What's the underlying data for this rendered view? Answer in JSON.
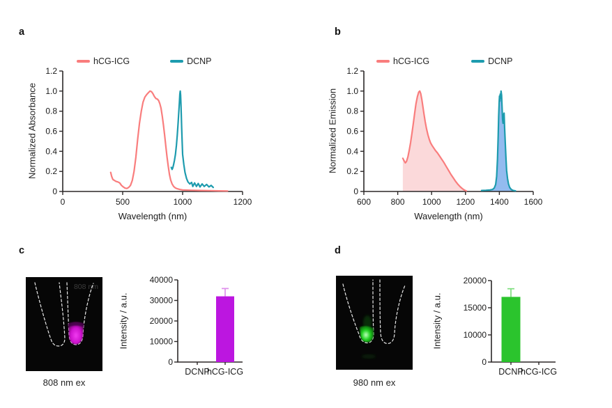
{
  "panels": {
    "a": {
      "label": "a",
      "ylabel": "Normalized Absorbance",
      "xlabel": "Wavelength (nm)",
      "legend": [
        {
          "name": "hCG-ICG",
          "color": "#F97D7D"
        },
        {
          "name": "DCNP",
          "color": "#1D9BAE"
        }
      ]
    },
    "b": {
      "label": "b",
      "ylabel": "Normalized Emission",
      "xlabel": "Wavelength (nm)",
      "legend": [
        {
          "name": "hCG-ICG",
          "color": "#F97D7D"
        },
        {
          "name": "DCNP",
          "color": "#1D9BAE"
        }
      ]
    },
    "c": {
      "label": "c",
      "caption": "808 nm ex",
      "overlay_text": "808 nm",
      "ylabel": "Intensity / a.u.",
      "glow_color": "#CC11CC"
    },
    "d": {
      "label": "d",
      "caption": "980 nm ex",
      "ylabel": "Intensity / a.u.",
      "glow_color": "#22D322"
    }
  },
  "colors": {
    "axis": "#2b2727",
    "pink_line": "#F97D7D",
    "pink_fill": "#FBD9DA",
    "teal_line": "#1D9BAE",
    "blue_fill": "#93BBEF",
    "magenta_bar": "#BC16E0",
    "magenta_error": "#DE8EEC",
    "green_bar": "#2BC42D",
    "green_error": "#7FDE7F"
  },
  "chart_data": [
    {
      "id": "a",
      "type": "line",
      "title": "",
      "xlabel": "Wavelength (nm)",
      "ylabel": "Normalized Absorbance",
      "xticks": [
        0,
        500,
        1000,
        1200
      ],
      "xtick_note": "ticks rendered equally spaced (compressed 1000-1200 segment)",
      "yticks": [
        0,
        0.2,
        0.4,
        0.6,
        0.8,
        1.0,
        1.2
      ],
      "ylim": [
        0,
        1.2
      ],
      "grid": false,
      "legend_position": "top",
      "series": [
        {
          "name": "hCG-ICG",
          "color": "#F97D7D",
          "fill": null,
          "points": [
            [
              400,
              0.19
            ],
            [
              408,
              0.15
            ],
            [
              418,
              0.12
            ],
            [
              430,
              0.11
            ],
            [
              445,
              0.1
            ],
            [
              460,
              0.095
            ],
            [
              475,
              0.085
            ],
            [
              490,
              0.06
            ],
            [
              505,
              0.045
            ],
            [
              520,
              0.033
            ],
            [
              535,
              0.03
            ],
            [
              550,
              0.04
            ],
            [
              565,
              0.06
            ],
            [
              580,
              0.11
            ],
            [
              595,
              0.2
            ],
            [
              610,
              0.34
            ],
            [
              625,
              0.52
            ],
            [
              640,
              0.68
            ],
            [
              655,
              0.8
            ],
            [
              670,
              0.89
            ],
            [
              685,
              0.94
            ],
            [
              700,
              0.965
            ],
            [
              715,
              0.985
            ],
            [
              728,
              1.0
            ],
            [
              740,
              0.995
            ],
            [
              752,
              0.975
            ],
            [
              765,
              0.945
            ],
            [
              778,
              0.925
            ],
            [
              790,
              0.92
            ],
            [
              800,
              0.905
            ],
            [
              810,
              0.875
            ],
            [
              820,
              0.83
            ],
            [
              830,
              0.75
            ],
            [
              840,
              0.66
            ],
            [
              850,
              0.56
            ],
            [
              860,
              0.45
            ],
            [
              870,
              0.345
            ],
            [
              880,
              0.25
            ],
            [
              890,
              0.17
            ],
            [
              900,
              0.115
            ],
            [
              912,
              0.075
            ],
            [
              925,
              0.05
            ],
            [
              940,
              0.035
            ],
            [
              955,
              0.027
            ],
            [
              975,
              0.02
            ],
            [
              1000,
              0.015
            ],
            [
              1030,
              0.012
            ],
            [
              1060,
              0.01
            ],
            [
              1090,
              0.008
            ],
            [
              1120,
              0.006
            ],
            [
              1150,
              0.005
            ]
          ]
        },
        {
          "name": "DCNP",
          "color": "#1D9BAE",
          "fill": null,
          "points": [
            [
              905,
              0.24
            ],
            [
              912,
              0.22
            ],
            [
              918,
              0.235
            ],
            [
              925,
              0.27
            ],
            [
              932,
              0.31
            ],
            [
              940,
              0.37
            ],
            [
              948,
              0.46
            ],
            [
              955,
              0.56
            ],
            [
              962,
              0.68
            ],
            [
              968,
              0.79
            ],
            [
              973,
              0.89
            ],
            [
              977,
              0.97
            ],
            [
              980,
              1.0
            ],
            [
              983,
              0.96
            ],
            [
              986,
              0.87
            ],
            [
              989,
              0.76
            ],
            [
              992,
              0.64
            ],
            [
              996,
              0.5
            ],
            [
              1000,
              0.37
            ],
            [
              1004,
              0.27
            ],
            [
              1008,
              0.19
            ],
            [
              1013,
              0.13
            ],
            [
              1018,
              0.095
            ],
            [
              1024,
              0.075
            ],
            [
              1030,
              0.09
            ],
            [
              1034,
              0.05
            ],
            [
              1040,
              0.085
            ],
            [
              1046,
              0.05
            ],
            [
              1052,
              0.08
            ],
            [
              1058,
              0.045
            ],
            [
              1065,
              0.075
            ],
            [
              1072,
              0.05
            ],
            [
              1080,
              0.07
            ],
            [
              1088,
              0.045
            ],
            [
              1095,
              0.06
            ],
            [
              1102,
              0.04
            ]
          ]
        }
      ]
    },
    {
      "id": "b",
      "type": "area",
      "title": "",
      "xlabel": "Wavelength (nm)",
      "ylabel": "Normalized Emission",
      "xticks": [
        600,
        800,
        1000,
        1200,
        1400,
        1600
      ],
      "yticks": [
        0,
        0.2,
        0.4,
        0.6,
        0.8,
        1.0,
        1.2
      ],
      "ylim": [
        0,
        1.2
      ],
      "grid": false,
      "legend_position": "top",
      "series": [
        {
          "name": "hCG-ICG",
          "color": "#F97D7D",
          "fill": "#FBD9DA",
          "points": [
            [
              830,
              0.33
            ],
            [
              838,
              0.305
            ],
            [
              845,
              0.285
            ],
            [
              852,
              0.3
            ],
            [
              860,
              0.345
            ],
            [
              868,
              0.41
            ],
            [
              876,
              0.49
            ],
            [
              884,
              0.58
            ],
            [
              892,
              0.68
            ],
            [
              900,
              0.78
            ],
            [
              908,
              0.875
            ],
            [
              916,
              0.945
            ],
            [
              924,
              0.99
            ],
            [
              930,
              1.0
            ],
            [
              936,
              0.975
            ],
            [
              942,
              0.92
            ],
            [
              948,
              0.85
            ],
            [
              955,
              0.77
            ],
            [
              962,
              0.695
            ],
            [
              970,
              0.625
            ],
            [
              978,
              0.565
            ],
            [
              986,
              0.52
            ],
            [
              994,
              0.485
            ],
            [
              1002,
              0.46
            ],
            [
              1012,
              0.435
            ],
            [
              1022,
              0.41
            ],
            [
              1034,
              0.385
            ],
            [
              1046,
              0.355
            ],
            [
              1058,
              0.325
            ],
            [
              1072,
              0.29
            ],
            [
              1086,
              0.25
            ],
            [
              1100,
              0.21
            ],
            [
              1114,
              0.17
            ],
            [
              1128,
              0.135
            ],
            [
              1142,
              0.1
            ],
            [
              1156,
              0.07
            ],
            [
              1170,
              0.045
            ],
            [
              1184,
              0.025
            ],
            [
              1196,
              0.012
            ],
            [
              1205,
              0.006
            ]
          ]
        },
        {
          "name": "DCNP",
          "color": "#1D9BAE",
          "fill": "#93BBEF",
          "points": [
            [
              1295,
              0.01
            ],
            [
              1320,
              0.012
            ],
            [
              1345,
              0.015
            ],
            [
              1360,
              0.02
            ],
            [
              1370,
              0.035
            ],
            [
              1378,
              0.07
            ],
            [
              1384,
              0.15
            ],
            [
              1389,
              0.32
            ],
            [
              1393,
              0.55
            ],
            [
              1396,
              0.75
            ],
            [
              1399,
              0.9
            ],
            [
              1401,
              0.95
            ],
            [
              1403,
              0.9
            ],
            [
              1405,
              0.97
            ],
            [
              1408,
              0.93
            ],
            [
              1410,
              1.0
            ],
            [
              1413,
              0.96
            ],
            [
              1416,
              0.84
            ],
            [
              1419,
              0.72
            ],
            [
              1422,
              0.68
            ],
            [
              1425,
              0.76
            ],
            [
              1428,
              0.78
            ],
            [
              1431,
              0.64
            ],
            [
              1435,
              0.48
            ],
            [
              1439,
              0.33
            ],
            [
              1443,
              0.21
            ],
            [
              1448,
              0.13
            ],
            [
              1454,
              0.075
            ],
            [
              1461,
              0.04
            ],
            [
              1470,
              0.02
            ],
            [
              1482,
              0.01
            ],
            [
              1495,
              0.006
            ]
          ]
        }
      ]
    },
    {
      "id": "c",
      "type": "bar",
      "title": "",
      "ylabel": "Intensity / a.u.",
      "categories": [
        "DCNP",
        "hCG-ICG"
      ],
      "values": [
        0,
        32000
      ],
      "errors": [
        0,
        3800
      ],
      "bar_color": "#BC16E0",
      "error_color": "#DE8EEC",
      "yticks": [
        0,
        10000,
        20000,
        30000,
        40000
      ],
      "ylim": [
        0,
        40000
      ],
      "grid": false
    },
    {
      "id": "d",
      "type": "bar",
      "title": "",
      "ylabel": "Intensity / a.u.",
      "categories": [
        "DCNP",
        "hCG-ICG"
      ],
      "values": [
        17000,
        0
      ],
      "errors": [
        1500,
        0
      ],
      "bar_color": "#2BC42D",
      "error_color": "#7FDE7F",
      "yticks": [
        0,
        10000,
        15000,
        20000
      ],
      "ytick_note": "tick labels rendered equally spaced as displayed (non-linear)",
      "ylim": [
        0,
        20000
      ],
      "grid": false
    }
  ]
}
